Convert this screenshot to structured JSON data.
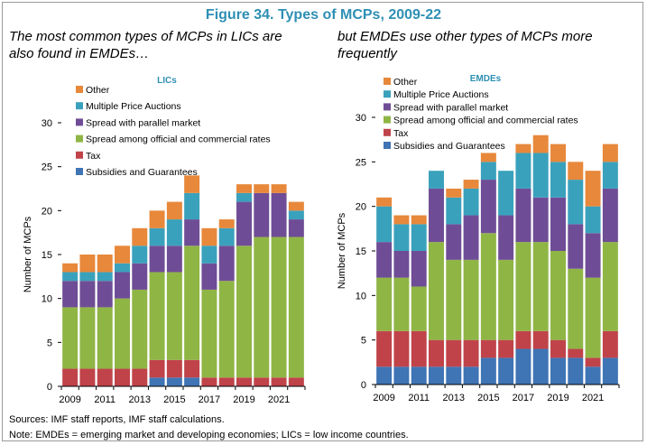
{
  "figure_title": "Figure 34. Types of MCPs, 2009-22",
  "subtitles": {
    "left": "The most common types of MCPs in LICs are also found in EMDEs…",
    "right": "but EMDEs use other types of MCPs more frequently"
  },
  "colors": {
    "title": "#2e8fb4",
    "panel_title": "#2e8fb4",
    "series": {
      "Subsidies and Guarantees": "#3f74b5",
      "Tax": "#c0434a",
      "Spread among official and commercial rates": "#8fb545",
      "Spread with parallel market": "#6f4d96",
      "Multiple Price Auctions": "#3aa1bc",
      "Other": "#e7883b"
    }
  },
  "chart_data": [
    {
      "type": "bar",
      "stacked": true,
      "title": "LICs",
      "xlabel": "",
      "ylabel": "Number of MCPs",
      "ylim": [
        0,
        30
      ],
      "yticks": [
        0,
        5,
        10,
        15,
        20,
        25,
        30
      ],
      "categories": [
        "2009",
        "2010",
        "2011",
        "2012",
        "2013",
        "2014",
        "2015",
        "2016",
        "2017",
        "2018",
        "2019",
        "2020",
        "2021",
        "2022"
      ],
      "xtick_labels": [
        "2009",
        "2011",
        "2013",
        "2015",
        "2017",
        "2019",
        "2021"
      ],
      "legend_position": "top-left",
      "legend_order": [
        "Other",
        "Multiple Price Auctions",
        "Spread with parallel market",
        "Spread among official and commercial rates",
        "Tax",
        "Subsidies and Guarantees"
      ],
      "series": [
        {
          "name": "Subsidies and Guarantees",
          "values": [
            0,
            0,
            0,
            0,
            0,
            1,
            1,
            1,
            0,
            0,
            0,
            0,
            0,
            0
          ]
        },
        {
          "name": "Tax",
          "values": [
            2,
            2,
            2,
            2,
            2,
            2,
            2,
            2,
            1,
            1,
            1,
            1,
            1,
            1
          ]
        },
        {
          "name": "Spread among official and commercial rates",
          "values": [
            7,
            7,
            7,
            8,
            9,
            10,
            10,
            13,
            10,
            11,
            15,
            16,
            16,
            16
          ]
        },
        {
          "name": "Spread with parallel market",
          "values": [
            3,
            3,
            3,
            3,
            3,
            3,
            3,
            3,
            3,
            4,
            5,
            5,
            5,
            2
          ]
        },
        {
          "name": "Multiple Price Auctions",
          "values": [
            1,
            1,
            1,
            1,
            2,
            2,
            3,
            3,
            2,
            2,
            1,
            0,
            0,
            1
          ]
        },
        {
          "name": "Other",
          "values": [
            1,
            2,
            2,
            2,
            2,
            2,
            2,
            2,
            2,
            1,
            1,
            1,
            1,
            1
          ]
        }
      ]
    },
    {
      "type": "bar",
      "stacked": true,
      "title": "EMDEs",
      "xlabel": "",
      "ylabel": "Number of MCPs",
      "ylim": [
        0,
        30
      ],
      "yticks": [
        0,
        5,
        10,
        15,
        20,
        25,
        30
      ],
      "categories": [
        "2009",
        "2010",
        "2011",
        "2012",
        "2013",
        "2014",
        "2015",
        "2016",
        "2017",
        "2018",
        "2019",
        "2020",
        "2021",
        "2022"
      ],
      "xtick_labels": [
        "2009",
        "2011",
        "2013",
        "2015",
        "2017",
        "2019",
        "2021"
      ],
      "legend_position": "top-left",
      "legend_order": [
        "Other",
        "Multiple Price Auctions",
        "Spread with parallel market",
        "Spread among official and commercial rates",
        "Tax",
        "Subsidies and Guarantees"
      ],
      "series": [
        {
          "name": "Subsidies and Guarantees",
          "values": [
            2,
            2,
            2,
            2,
            2,
            2,
            3,
            3,
            4,
            4,
            3,
            3,
            2,
            3
          ]
        },
        {
          "name": "Tax",
          "values": [
            4,
            4,
            4,
            3,
            3,
            3,
            2,
            2,
            2,
            2,
            2,
            1,
            1,
            3
          ]
        },
        {
          "name": "Spread among official and commercial rates",
          "values": [
            6,
            6,
            5,
            11,
            9,
            9,
            12,
            9,
            10,
            10,
            10,
            9,
            9,
            10
          ]
        },
        {
          "name": "Spread with parallel market",
          "values": [
            4,
            3,
            4,
            6,
            4,
            5,
            6,
            5,
            6,
            5,
            6,
            5,
            5,
            6
          ]
        },
        {
          "name": "Multiple Price Auctions",
          "values": [
            4,
            3,
            3,
            2,
            3,
            3,
            2,
            5,
            4,
            5,
            4,
            5,
            3,
            3
          ]
        },
        {
          "name": "Other",
          "values": [
            1,
            1,
            1,
            0,
            1,
            1,
            1,
            0,
            1,
            2,
            2,
            2,
            4,
            2
          ]
        }
      ]
    }
  ],
  "footer": {
    "sources": "Sources: IMF staff reports, IMF staff calculations.",
    "note": "Note: EMDEs = emerging market and developing economies; LICs = low income countries."
  }
}
